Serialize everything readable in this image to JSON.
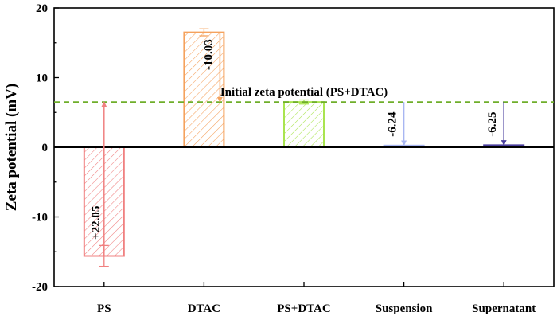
{
  "chart_data": {
    "type": "bar",
    "title": "",
    "xlabel": "",
    "ylabel": "Zeta potential (mV)",
    "ylim": [
      -20,
      20
    ],
    "yticks": [
      -20,
      -10,
      0,
      10,
      20
    ],
    "grid": false,
    "categories": [
      "PS",
      "DTAC",
      "PS+DTAC",
      "Suspension",
      "Supernatant"
    ],
    "values": [
      -15.6,
      16.5,
      6.5,
      0.25,
      0.3
    ],
    "errors": [
      1.5,
      0.5,
      0.3,
      0.05,
      0.05
    ],
    "colors": [
      "#f08080",
      "#f5a25d",
      "#a9e44f",
      "#a8b6f2",
      "#4a3f9e"
    ],
    "reference_line": {
      "label": "Initial zeta potential (PS+DTAC)",
      "value": 6.5,
      "color": "#6fae2a"
    },
    "annotations": [
      {
        "category": "PS",
        "label": "+22.05",
        "from": -15.6,
        "to": 6.5,
        "color": "#f08080"
      },
      {
        "category": "DTAC",
        "label": "-10.03",
        "from": 16.5,
        "to": 6.5,
        "color": "#f5a25d"
      },
      {
        "category": "Suspension",
        "label": "-6.24",
        "from": 6.5,
        "to": 0.25,
        "color": "#a8b6f2"
      },
      {
        "category": "Supernatant",
        "label": "-6.25",
        "from": 6.5,
        "to": 0.3,
        "color": "#4a3f9e"
      }
    ]
  }
}
